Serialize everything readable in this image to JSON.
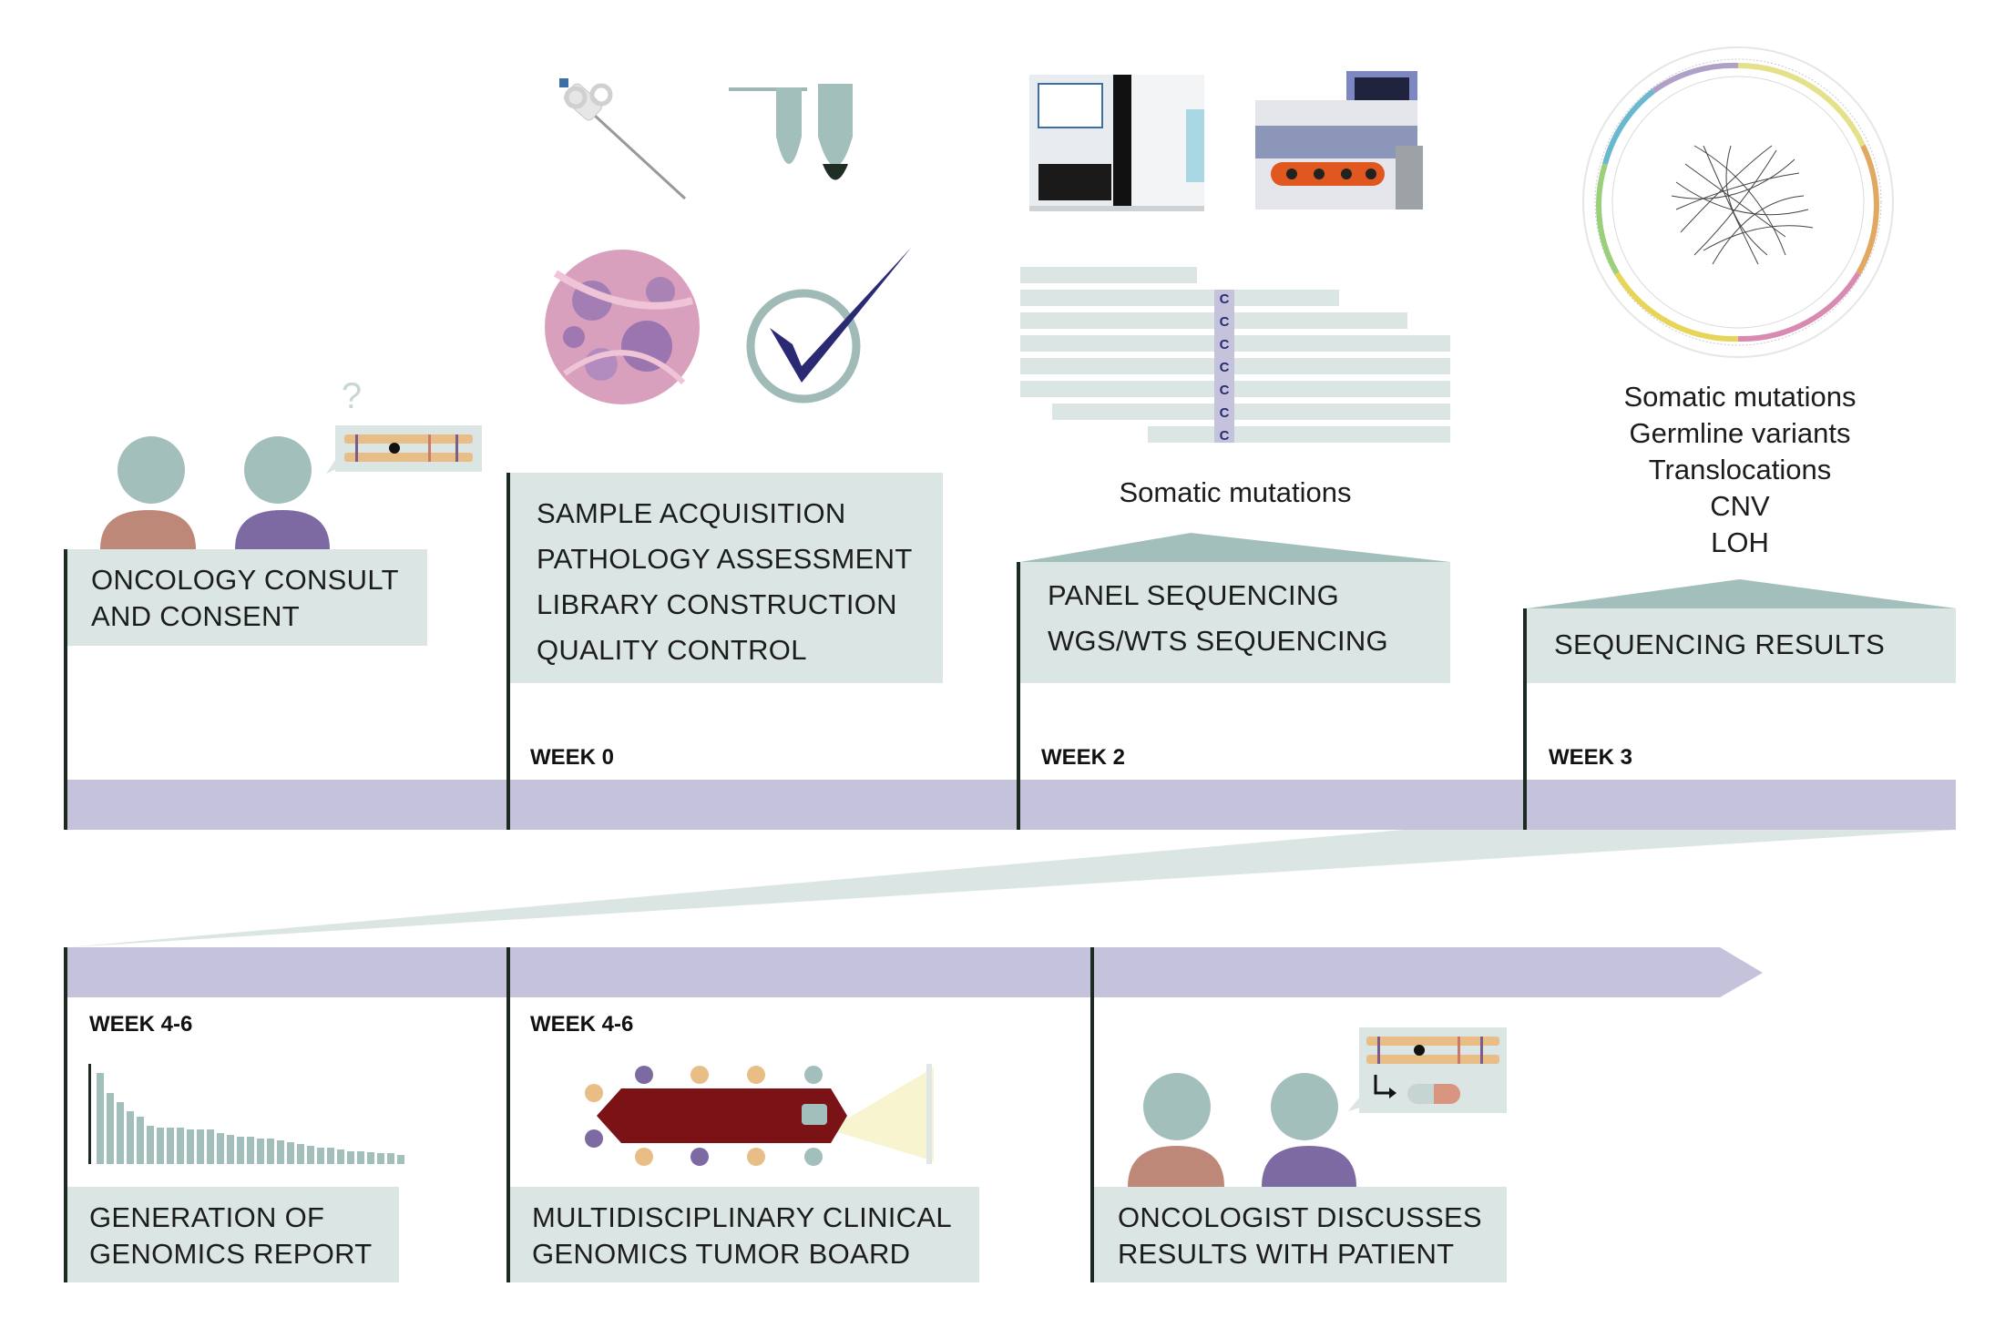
{
  "milestones": {
    "consult": {
      "lines": [
        "ONCOLOGY CONSULT",
        "AND CONSENT"
      ]
    },
    "sample": {
      "lines": [
        "SAMPLE ACQUISITION",
        "PATHOLOGY ASSESSMENT",
        "LIBRARY CONSTRUCTION",
        "QUALITY CONTROL"
      ]
    },
    "sequencing": {
      "lines": [
        "PANEL SEQUENCING",
        "WGS/WTS SEQUENCING"
      ]
    },
    "results": {
      "lines": [
        "SEQUENCING RESULTS"
      ]
    },
    "report": {
      "lines": [
        "GENERATION OF",
        "GENOMICS REPORT"
      ]
    },
    "tumor_board": {
      "lines": [
        "MULTIDISCIPLINARY CLINICAL",
        "GENOMICS TUMOR BOARD"
      ]
    },
    "discussion": {
      "lines": [
        "ONCOLOGIST DISCUSSES",
        "RESULTS WITH PATIENT"
      ]
    }
  },
  "weeks": {
    "w0": "WEEK 0",
    "w2": "WEEK 2",
    "w3": "WEEK 3",
    "w46a": "WEEK 4-6",
    "w46b": "WEEK 4-6"
  },
  "captions": {
    "somatic": "Somatic mutations",
    "results_list": [
      "Somatic mutations",
      "Germline variants",
      "Translocations",
      "CNV",
      "LOH"
    ]
  },
  "glyphs": {
    "question": "?",
    "read_base": "C"
  },
  "report_bars": [
    100,
    78,
    68,
    58,
    52,
    42,
    40,
    40,
    40,
    38,
    38,
    38,
    34,
    32,
    30,
    30,
    28,
    28,
    26,
    24,
    22,
    20,
    18,
    18,
    16,
    14,
    14,
    13,
    12,
    12,
    10
  ],
  "colors": {
    "timeline": "#c5c3dc",
    "box": "#dbe6e4",
    "tick": "#1d2a22",
    "head": "#a3bfbc",
    "body_left": "#bd8878",
    "body_right": "#7e6aa3",
    "table": "#7a1216",
    "chromosome": "#e8be86"
  }
}
